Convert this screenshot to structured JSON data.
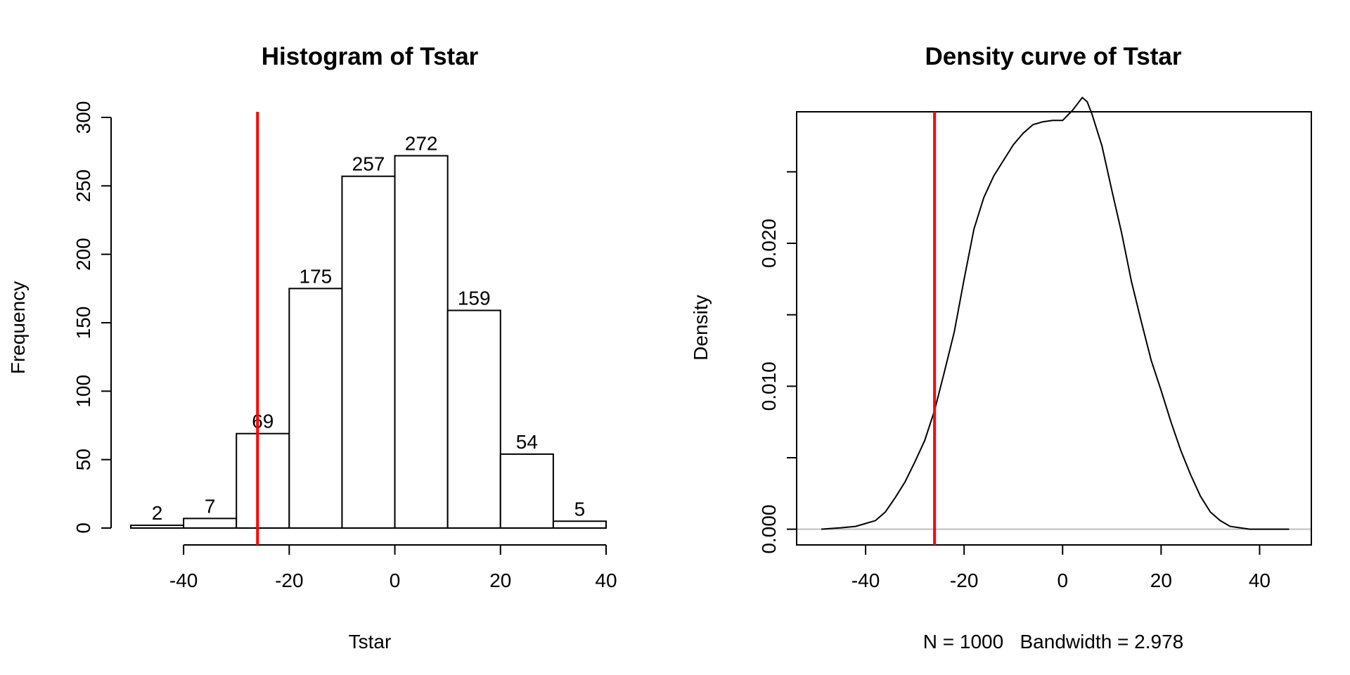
{
  "chart_data": [
    {
      "type": "bar",
      "title": "Histogram of Tstar",
      "xlabel": "Tstar",
      "ylabel": "Frequency",
      "bins": [
        {
          "from": -50,
          "to": -40,
          "count": 2
        },
        {
          "from": -40,
          "to": -30,
          "count": 7
        },
        {
          "from": -30,
          "to": -20,
          "count": 69
        },
        {
          "from": -20,
          "to": -10,
          "count": 175
        },
        {
          "from": -10,
          "to": 0,
          "count": 257
        },
        {
          "from": 0,
          "to": 10,
          "count": 272
        },
        {
          "from": 10,
          "to": 20,
          "count": 159
        },
        {
          "from": 20,
          "to": 30,
          "count": 54
        },
        {
          "from": 30,
          "to": 40,
          "count": 5
        }
      ],
      "bar_labels": [
        "2",
        "7",
        "69",
        "175",
        "257",
        "272",
        "159",
        "54",
        "5"
      ],
      "xlim": [
        -50,
        40
      ],
      "ylim": [
        0,
        300
      ],
      "x_ticks": [
        -40,
        -20,
        0,
        20,
        40
      ],
      "x_tick_labels": [
        "-40",
        "-20",
        "0",
        "20",
        "40"
      ],
      "y_ticks": [
        0,
        50,
        100,
        150,
        200,
        250,
        300
      ],
      "y_tick_labels": [
        "0",
        "50",
        "100",
        "150",
        "200",
        "250",
        "300"
      ],
      "reference_line": {
        "x": -26,
        "color": "#ff0000"
      },
      "grid": false,
      "legend": "none"
    },
    {
      "type": "line",
      "title": "Density curve of Tstar",
      "xlabel": "N = 1000   Bandwidth = 2.978",
      "ylabel": "Density",
      "series": [
        {
          "x": [
            -49,
            -45,
            -42,
            -40,
            -38,
            -36,
            -34,
            -32,
            -30,
            -28,
            -26,
            -24,
            -22,
            -20,
            -18,
            -16,
            -14,
            -12,
            -10,
            -8,
            -6,
            -4,
            -2,
            0,
            2,
            4,
            5,
            6,
            8,
            10,
            12,
            14,
            16,
            18,
            20,
            22,
            24,
            26,
            28,
            30,
            32,
            34,
            36,
            38,
            40,
            42,
            46
          ],
          "y": [
            0.0,
            0.0001,
            0.0002,
            0.0004,
            0.0006,
            0.0012,
            0.0022,
            0.0033,
            0.0047,
            0.0062,
            0.0083,
            0.011,
            0.0138,
            0.0175,
            0.021,
            0.0232,
            0.0247,
            0.0258,
            0.0269,
            0.0277,
            0.0283,
            0.0285,
            0.0286,
            0.0286,
            0.0293,
            0.0302,
            0.0299,
            0.029,
            0.0268,
            0.0237,
            0.0207,
            0.0173,
            0.0145,
            0.0118,
            0.0097,
            0.0075,
            0.0055,
            0.0038,
            0.0023,
            0.0012,
            0.0006,
            0.0002,
            0.0001,
            0.0,
            0.0,
            0.0,
            0.0
          ]
        }
      ],
      "xlim": [
        -54,
        50.5
      ],
      "ylim": [
        -0.0011,
        0.0292
      ],
      "x_ticks": [
        -40,
        -20,
        0,
        20,
        40
      ],
      "x_tick_labels": [
        "-40",
        "-20",
        "0",
        "20",
        "40"
      ],
      "y_ticks": [
        0,
        0.005,
        0.01,
        0.015,
        0.02,
        0.025
      ],
      "y_tick_labels": [
        "0.000",
        "",
        "0.010",
        "",
        "0.020",
        ""
      ],
      "reference_line": {
        "x": -26,
        "color": "#ff0000"
      },
      "zero_line_color": "#bebebe",
      "grid": false,
      "legend": "none",
      "box": true
    }
  ]
}
